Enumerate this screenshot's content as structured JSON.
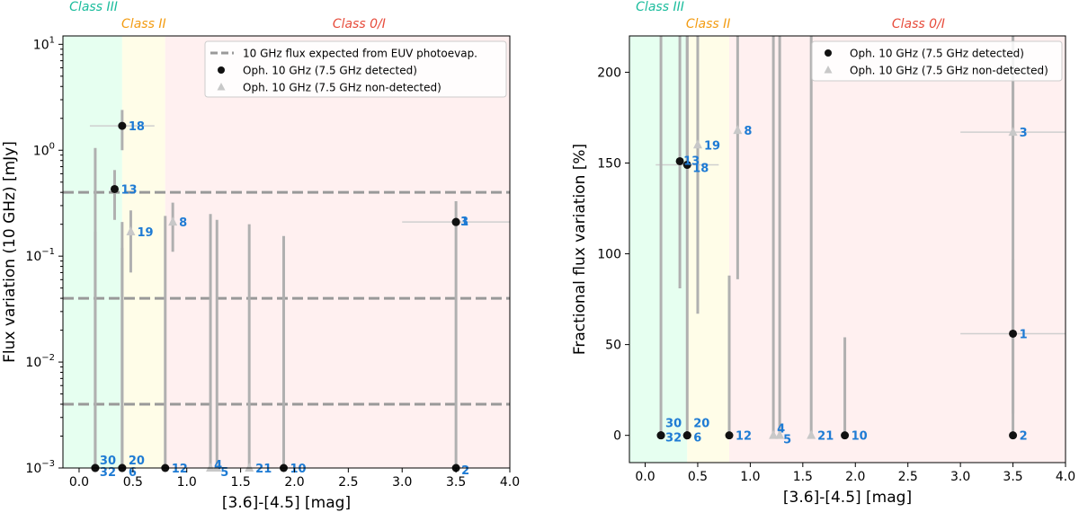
{
  "chart_data": [
    {
      "type": "scatter",
      "panel": "left",
      "xlabel": "[3.6]-[4.5] [mag]",
      "ylabel": "Flux variation (10 GHz) [mJy]",
      "yscale": "log",
      "xlim": [
        -0.15,
        4.0
      ],
      "ylim": [
        0.001,
        12
      ],
      "xticks": [
        "0.0",
        "0.5",
        "1.0",
        "1.5",
        "2.0",
        "2.5",
        "3.0",
        "3.5",
        "4.0"
      ],
      "xtick_values": [
        0,
        0.5,
        1,
        1.5,
        2,
        2.5,
        3,
        3.5,
        4
      ],
      "yticks": [
        {
          "value": 0.001,
          "base": "10",
          "exp": "−3"
        },
        {
          "value": 0.01,
          "base": "10",
          "exp": "−2"
        },
        {
          "value": 0.1,
          "base": "10",
          "exp": "−1"
        },
        {
          "value": 1,
          "base": "10",
          "exp": "0"
        },
        {
          "value": 10,
          "base": "10",
          "exp": "1"
        }
      ],
      "class_regions": [
        {
          "label": "Class III",
          "x0": -0.15,
          "x1": 0.4,
          "color": "#e6fff0",
          "text_color": "#1abc9c"
        },
        {
          "label": "Class II",
          "x0": 0.4,
          "x1": 0.8,
          "color": "#fffde8",
          "text_color": "#f39c12"
        },
        {
          "label": "Class 0/I",
          "x0": 0.8,
          "x1": 4.0,
          "color": "#fff0f0",
          "text_color": "#e74c3c"
        }
      ],
      "hlines": [
        0.4,
        0.04,
        0.004
      ],
      "legend": [
        {
          "label": "10 GHz flux expected from EUV photoevap.",
          "marker": "dash"
        },
        {
          "label": "Oph. 10 GHz (7.5 GHz detected)",
          "marker": "circle"
        },
        {
          "label": "Oph. 10 GHz (7.5 GHz non-detected)",
          "marker": "triangle"
        }
      ],
      "points": [
        {
          "id": "18",
          "x": 0.4,
          "y": 1.7,
          "ylo": 1.0,
          "yhi": 2.4,
          "xlo": 0.1,
          "xhi": 0.7,
          "marker": "circle"
        },
        {
          "id": "13",
          "x": 0.33,
          "y": 0.43,
          "ylo": 0.22,
          "yhi": 0.65,
          "marker": "circle"
        },
        {
          "id": "19",
          "x": 0.48,
          "y": 0.17,
          "ylo": 0.07,
          "yhi": 0.27,
          "marker": "triangle"
        },
        {
          "id": "8",
          "x": 0.87,
          "y": 0.21,
          "ylo": 0.11,
          "yhi": 0.32,
          "marker": "triangle"
        },
        {
          "id": "1",
          "x": 3.5,
          "y": 0.21,
          "ylo": 0.001,
          "yhi": 0.33,
          "xlo": 3.0,
          "xhi": 4.0,
          "marker": "circle"
        },
        {
          "id": "3",
          "x": 3.5,
          "y": 0.21,
          "marker": "circle"
        },
        {
          "id": "30",
          "x": 0.15,
          "y": 0.001,
          "yhi": 1.05,
          "marker": "circle"
        },
        {
          "id": "32",
          "x": 0.15,
          "y": 0.001,
          "yhi": 0.17,
          "marker": "circle"
        },
        {
          "id": "20",
          "x": 0.4,
          "y": 0.001,
          "yhi": 0.21,
          "marker": "circle"
        },
        {
          "id": "6",
          "x": 0.4,
          "y": 0.001,
          "yhi": 0.12,
          "marker": "circle"
        },
        {
          "id": "12",
          "x": 0.8,
          "y": 0.001,
          "yhi": 0.24,
          "marker": "circle"
        },
        {
          "id": "4",
          "x": 1.22,
          "y": 0.001,
          "yhi": 0.25,
          "marker": "triangle"
        },
        {
          "id": "5",
          "x": 1.28,
          "y": 0.001,
          "yhi": 0.22,
          "marker": "triangle"
        },
        {
          "id": "21",
          "x": 1.58,
          "y": 0.001,
          "yhi": 0.2,
          "marker": "triangle"
        },
        {
          "id": "10",
          "x": 1.9,
          "y": 0.001,
          "yhi": 0.155,
          "marker": "circle"
        },
        {
          "id": "2",
          "x": 3.5,
          "y": 0.001,
          "marker": "circle"
        }
      ]
    },
    {
      "type": "scatter",
      "panel": "right",
      "xlabel": "[3.6]-[4.5] [mag]",
      "ylabel": "Fractional flux variation [%]",
      "yscale": "linear",
      "xlim": [
        -0.15,
        4.0
      ],
      "ylim": [
        -15,
        220
      ],
      "xticks": [
        "0.0",
        "0.5",
        "1.0",
        "1.5",
        "2.0",
        "2.5",
        "3.0",
        "3.5",
        "4.0"
      ],
      "xtick_values": [
        0,
        0.5,
        1,
        1.5,
        2,
        2.5,
        3,
        3.5,
        4
      ],
      "yticks": [
        "0",
        "50",
        "100",
        "150",
        "200"
      ],
      "ytick_values": [
        0,
        50,
        100,
        150,
        200
      ],
      "class_regions": [
        {
          "label": "Class III",
          "x0": -0.15,
          "x1": 0.4,
          "color": "#e6fff0",
          "text_color": "#1abc9c"
        },
        {
          "label": "Class II",
          "x0": 0.4,
          "x1": 0.8,
          "color": "#fffde8",
          "text_color": "#f39c12"
        },
        {
          "label": "Class 0/I",
          "x0": 0.8,
          "x1": 4.0,
          "color": "#fff0f0",
          "text_color": "#e74c3c"
        }
      ],
      "legend": [
        {
          "label": "Oph. 10 GHz (7.5 GHz detected)",
          "marker": "circle"
        },
        {
          "label": "Oph. 10 GHz (7.5 GHz non-detected)",
          "marker": "triangle"
        }
      ],
      "points": [
        {
          "id": "13",
          "x": 0.33,
          "y": 151,
          "ylo": 81,
          "yhi": 220,
          "marker": "circle"
        },
        {
          "id": "18",
          "x": 0.4,
          "y": 149,
          "yhi": 220,
          "xlo": 0.1,
          "xhi": 0.7,
          "marker": "circle"
        },
        {
          "id": "19",
          "x": 0.5,
          "y": 160,
          "ylo": 67,
          "yhi": 220,
          "marker": "triangle"
        },
        {
          "id": "8",
          "x": 0.88,
          "y": 168,
          "ylo": 86,
          "yhi": 220,
          "marker": "triangle"
        },
        {
          "id": "3",
          "x": 3.5,
          "y": 167,
          "yhi": 220,
          "xlo": 3.0,
          "xhi": 4.0,
          "marker": "triangle"
        },
        {
          "id": "1",
          "x": 3.5,
          "y": 56,
          "ylo": 12,
          "yhi": 97,
          "xlo": 3.0,
          "xhi": 4.0,
          "marker": "circle"
        },
        {
          "id": "30",
          "x": 0.15,
          "y": 0,
          "yhi": 220,
          "marker": "circle"
        },
        {
          "id": "32",
          "x": 0.15,
          "y": 0,
          "marker": "circle"
        },
        {
          "id": "20",
          "x": 0.4,
          "y": 0,
          "yhi": 220,
          "marker": "circle"
        },
        {
          "id": "6",
          "x": 0.4,
          "y": 0,
          "marker": "circle"
        },
        {
          "id": "12",
          "x": 0.8,
          "y": 0,
          "yhi": 88,
          "marker": "circle"
        },
        {
          "id": "4",
          "x": 1.22,
          "y": 0,
          "yhi": 220,
          "marker": "triangle"
        },
        {
          "id": "5",
          "x": 1.28,
          "y": 0,
          "yhi": 220,
          "marker": "triangle"
        },
        {
          "id": "21",
          "x": 1.58,
          "y": 0,
          "yhi": 220,
          "marker": "triangle"
        },
        {
          "id": "10",
          "x": 1.9,
          "y": 0,
          "yhi": 54,
          "marker": "circle"
        },
        {
          "id": "2",
          "x": 3.5,
          "y": 0,
          "yhi": 220,
          "marker": "circle"
        }
      ]
    }
  ]
}
